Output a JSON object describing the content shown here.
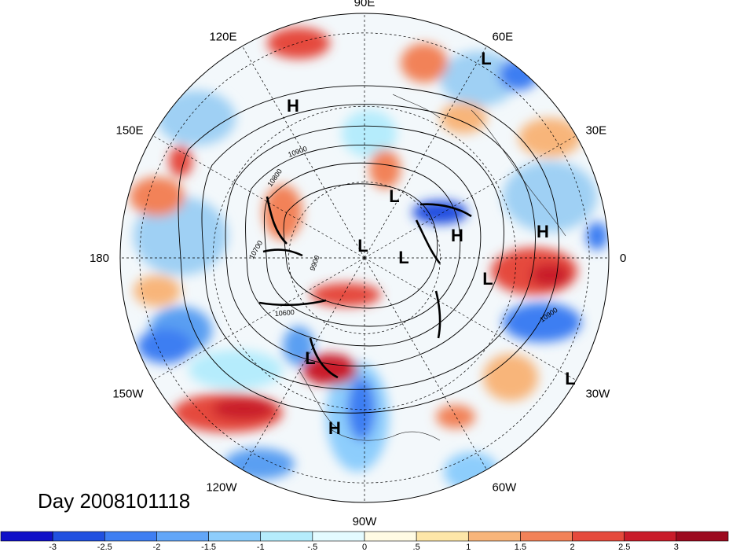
{
  "map": {
    "projection": "north-polar-stereographic",
    "date_label": "Day 2008101118",
    "longitude_labels": [
      {
        "text": "90E",
        "lon": 90
      },
      {
        "text": "60E",
        "lon": 60
      },
      {
        "text": "30E",
        "lon": 30
      },
      {
        "text": "0",
        "lon": 0
      },
      {
        "text": "30W",
        "lon": -30
      },
      {
        "text": "60W",
        "lon": -60
      },
      {
        "text": "90W",
        "lon": -90
      },
      {
        "text": "120W",
        "lon": -120
      },
      {
        "text": "150W",
        "lon": -150
      },
      {
        "text": "180",
        "lon": 180
      },
      {
        "text": "150E",
        "lon": 150
      },
      {
        "text": "120E",
        "lon": 120
      }
    ],
    "pressure_centers": [
      {
        "text": "L",
        "kind": "low"
      },
      {
        "text": "H",
        "kind": "high"
      },
      {
        "text": "L",
        "kind": "low"
      },
      {
        "text": "H",
        "kind": "high"
      },
      {
        "text": "H",
        "kind": "high"
      },
      {
        "text": "L",
        "kind": "low"
      },
      {
        "text": "L",
        "kind": "low"
      },
      {
        "text": "L",
        "kind": "low"
      },
      {
        "text": "L",
        "kind": "low"
      },
      {
        "text": "H",
        "kind": "high"
      },
      {
        "text": "L",
        "kind": "low"
      }
    ],
    "contour_labels": [
      "10800",
      "10700",
      "10600",
      "9900",
      "10900",
      "10900"
    ]
  },
  "colorbar": {
    "colors": [
      "#1010c8",
      "#2050e0",
      "#3e7ef2",
      "#62a6f8",
      "#8dcdfc",
      "#b5ecfc",
      "#e4fbff",
      "#fffbe4",
      "#fde6a8",
      "#f8b57a",
      "#f28258",
      "#e54a3c",
      "#c91c2a",
      "#9c0a1e"
    ],
    "tick_labels": [
      "-3",
      "-2.5",
      "-2",
      "-1.5",
      "-1",
      "-.5",
      "0",
      ".5",
      "1",
      "1.5",
      "2",
      "2.5",
      "3"
    ]
  }
}
